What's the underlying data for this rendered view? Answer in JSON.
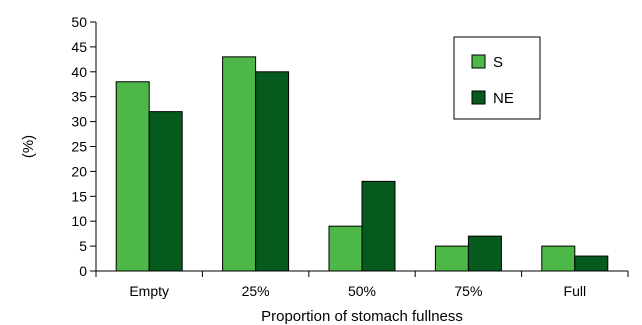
{
  "colors": {
    "S": "#4db848",
    "NE": "#065a1e"
  },
  "chart_data": {
    "type": "bar",
    "title": "",
    "xlabel": "Proportion of stomach fullness",
    "ylabel": "(%)",
    "categories": [
      "Empty",
      "25%",
      "50%",
      "75%",
      "Full"
    ],
    "series": [
      {
        "name": "S",
        "values": [
          38,
          43,
          9,
          5,
          5
        ]
      },
      {
        "name": "NE",
        "values": [
          32,
          40,
          18,
          7,
          3
        ]
      }
    ],
    "ylim": [
      0,
      50
    ],
    "yticks": [
      0,
      5,
      10,
      15,
      20,
      25,
      30,
      35,
      40,
      45,
      50
    ],
    "grid": false,
    "legend": "top-right"
  }
}
